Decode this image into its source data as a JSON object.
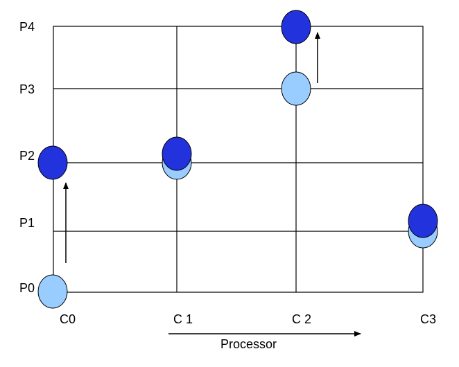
{
  "rows": [
    "P0",
    "P1",
    "P2",
    "P3",
    "P4"
  ],
  "columns": [
    "C0",
    "C 1",
    "C 2",
    "C3"
  ],
  "axis_label": "Processor",
  "colors": {
    "light": "#99ccff",
    "dark": "#2233dd",
    "grid": "#000000"
  }
}
